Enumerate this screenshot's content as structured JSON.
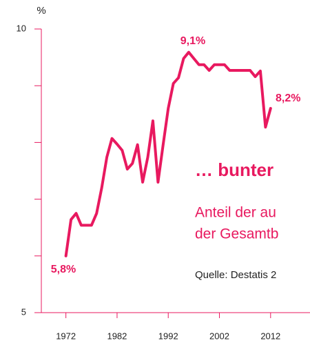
{
  "chart_data": {
    "type": "line",
    "title": "… bunter",
    "subtitle": [
      "Anteil der au",
      "der Gesamtb"
    ],
    "source": "Quelle: Destatis 2",
    "y_label": "%",
    "annotations": [
      "9,1%",
      "8,2%",
      "5,8%"
    ],
    "x": [
      1972,
      1973,
      1974,
      1975,
      1976,
      1977,
      1978,
      1979,
      1980,
      1981,
      1982,
      1983,
      1984,
      1985,
      1986,
      1987,
      1988,
      1989,
      1990,
      1991,
      1992,
      1993,
      1994,
      1995,
      1996,
      1997,
      1998,
      1999,
      2000,
      2001,
      2002,
      2003,
      2004,
      2005,
      2006,
      2007,
      2008,
      2009,
      2010,
      2011,
      2012
    ],
    "series": [
      {
        "color": "#e8195f",
        "values": [
          6.0,
          6.64,
          6.75,
          6.54,
          6.54,
          6.54,
          6.75,
          7.2,
          7.74,
          8.07,
          7.97,
          7.86,
          7.53,
          7.63,
          7.96,
          7.3,
          7.74,
          8.38,
          7.3,
          7.96,
          8.6,
          9.04,
          9.14,
          9.48,
          9.59,
          9.48,
          9.37,
          9.37,
          9.27,
          9.37,
          9.37,
          9.37,
          9.27,
          9.27,
          9.27,
          9.27,
          9.27,
          9.16,
          9.26,
          8.27,
          8.6
        ]
      }
    ],
    "xlim": [
      1967.2,
      2019.7
    ],
    "xticks": [
      1972,
      1982,
      1992,
      2002,
      2012
    ],
    "ylim": [
      5,
      10
    ],
    "yticks": [
      5,
      {
        "value": 6,
        "label": ""
      },
      {
        "value": 7,
        "label": ""
      },
      {
        "value": 8,
        "label": ""
      },
      {
        "value": 9,
        "label": ""
      },
      10
    ]
  }
}
